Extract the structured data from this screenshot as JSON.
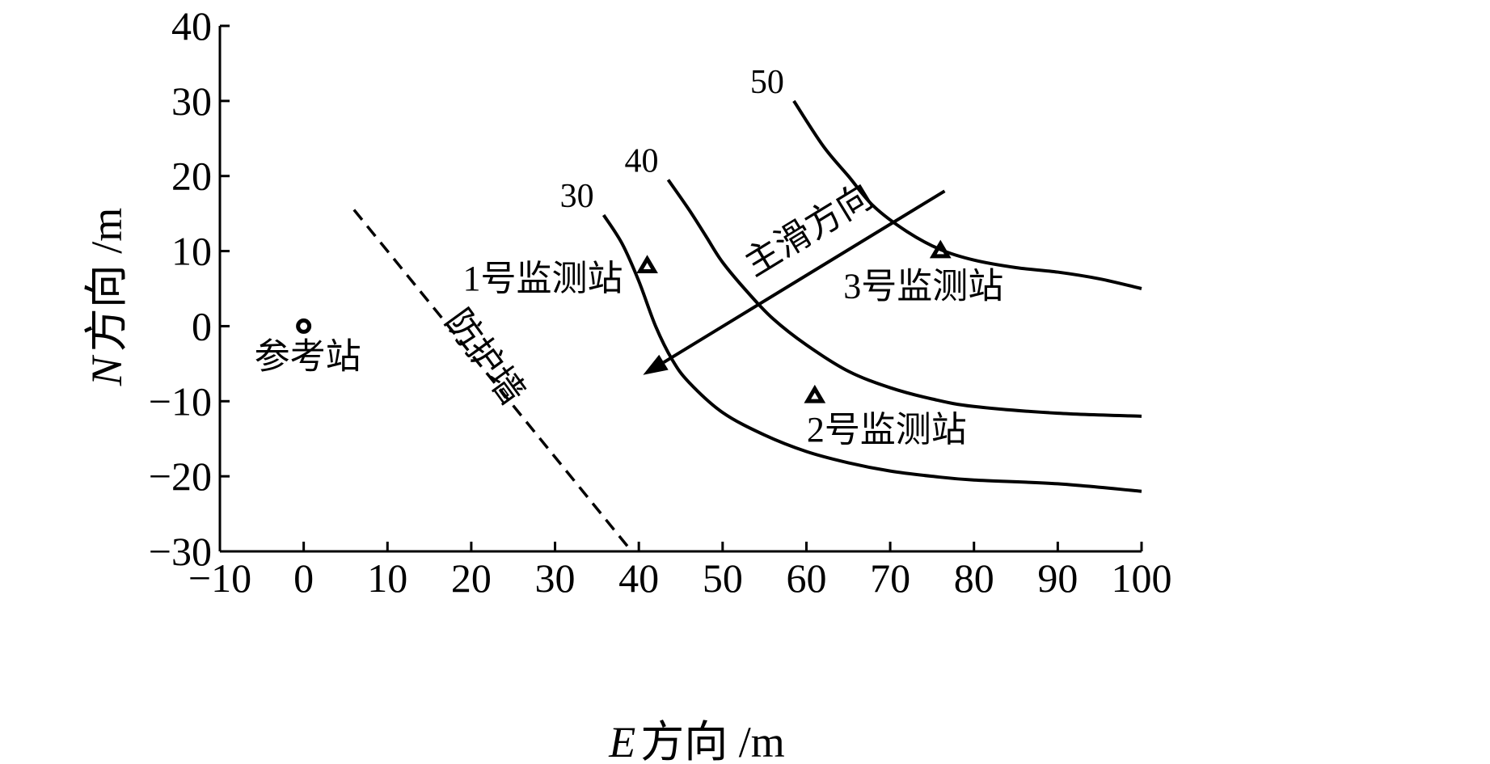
{
  "chart_data": {
    "type": "line",
    "title": "",
    "xlabel": {
      "italic": "E",
      "rest": "方向 /m"
    },
    "ylabel": {
      "italic": "N",
      "rest": "方向 /m"
    },
    "xlim": [
      -10,
      100
    ],
    "ylim": [
      -30,
      40
    ],
    "xticks": [
      -10,
      0,
      10,
      20,
      30,
      40,
      50,
      60,
      70,
      80,
      90,
      100
    ],
    "yticks": [
      -30,
      -20,
      -10,
      0,
      10,
      20,
      30,
      40
    ],
    "xtick_labels": [
      "−10",
      "0",
      "10",
      "20",
      "30",
      "40",
      "50",
      "60",
      "70",
      "80",
      "90",
      "100"
    ],
    "ytick_labels": [
      "−30",
      "−20",
      "−10",
      "0",
      "10",
      "20",
      "30",
      "40"
    ],
    "grid": false,
    "series": [
      {
        "name": "30",
        "x": [
          35.8,
          38,
          40,
          42,
          44,
          46,
          50,
          55,
          60,
          65,
          70,
          75,
          80,
          90,
          100
        ],
        "y": [
          14.8,
          11,
          6,
          0,
          -4.5,
          -7.5,
          -11.5,
          -14.5,
          -16.7,
          -18.2,
          -19.3,
          -20.0,
          -20.5,
          -21.0,
          -22.0
        ]
      },
      {
        "name": "40",
        "x": [
          43.5,
          46,
          48,
          50,
          53,
          56,
          60,
          65,
          70,
          75,
          80,
          90,
          100
        ],
        "y": [
          19.5,
          15.5,
          12,
          8.5,
          4.5,
          1,
          -2.5,
          -6,
          -8.2,
          -9.7,
          -10.7,
          -11.6,
          -12.0
        ]
      },
      {
        "name": "50",
        "x": [
          58.5,
          62,
          65,
          68,
          72,
          76,
          80,
          85,
          90,
          95,
          100
        ],
        "y": [
          30,
          24,
          20,
          16,
          12.6,
          10.2,
          8.8,
          7.8,
          7.2,
          6.3,
          5.0
        ]
      }
    ],
    "protection_wall": {
      "label": "防护墙",
      "x": [
        6,
        39
      ],
      "y": [
        15.5,
        -29.8
      ]
    },
    "main_slide_direction": {
      "label": "主滑方向",
      "from": [
        76.5,
        18
      ],
      "to": [
        40.5,
        -6.5
      ]
    },
    "stations": [
      {
        "name": "参考站",
        "marker": "circle",
        "x": 0,
        "y": 0
      },
      {
        "name": "1号监测站",
        "marker": "triangle",
        "x": 41,
        "y": 8
      },
      {
        "name": "2号监测站",
        "marker": "triangle",
        "x": 61,
        "y": -9.3
      },
      {
        "name": "3号监测站",
        "marker": "triangle",
        "x": 76,
        "y": 10
      }
    ]
  }
}
